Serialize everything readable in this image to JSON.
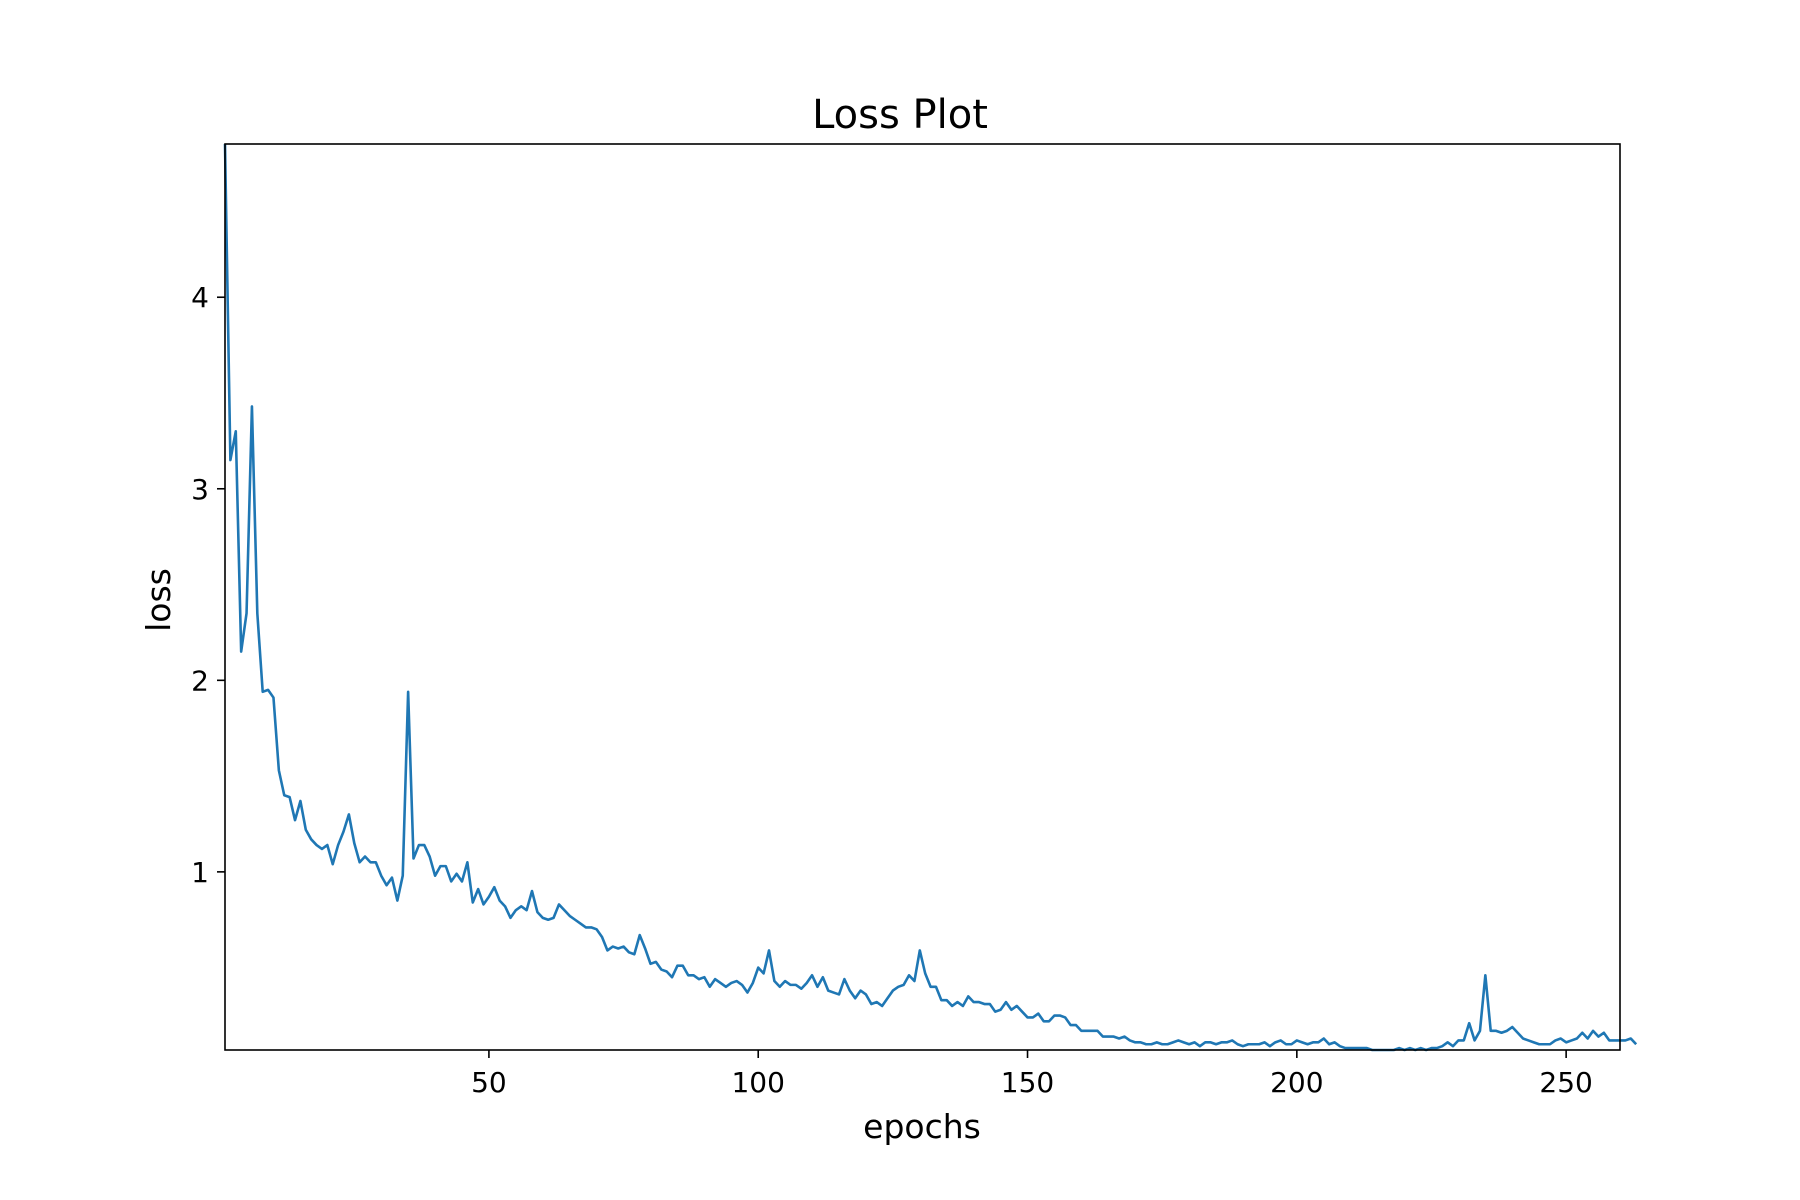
{
  "chart_data": {
    "type": "line",
    "title": "Loss Plot",
    "xlabel": "epochs",
    "ylabel": "loss",
    "xlim": [
      1,
      260
    ],
    "ylim": [
      0.07,
      4.8
    ],
    "x_ticks": [
      50,
      100,
      150,
      200,
      250
    ],
    "x_tick_labels": [
      "50",
      "100",
      "150",
      "200",
      "250"
    ],
    "y_ticks": [
      1,
      2,
      3,
      4
    ],
    "y_tick_labels": [
      "1",
      "2",
      "3",
      "4"
    ],
    "grid": false,
    "legend": "none",
    "line_color": "#1f77b4",
    "series": [
      {
        "x_start": 1,
        "x_step": 1,
        "values": [
          4.8,
          3.15,
          3.3,
          2.15,
          2.35,
          3.43,
          2.35,
          1.94,
          1.95,
          1.91,
          1.53,
          1.4,
          1.39,
          1.27,
          1.37,
          1.22,
          1.17,
          1.14,
          1.12,
          1.14,
          1.04,
          1.14,
          1.21,
          1.3,
          1.15,
          1.05,
          1.08,
          1.05,
          1.05,
          0.98,
          0.93,
          0.97,
          0.85,
          0.98,
          1.94,
          1.07,
          1.14,
          1.14,
          1.08,
          0.98,
          1.03,
          1.03,
          0.95,
          0.99,
          0.95,
          1.05,
          0.84,
          0.91,
          0.83,
          0.87,
          0.92,
          0.85,
          0.82,
          0.76,
          0.8,
          0.82,
          0.8,
          0.9,
          0.79,
          0.76,
          0.75,
          0.76,
          0.83,
          0.8,
          0.77,
          0.75,
          0.73,
          0.71,
          0.71,
          0.7,
          0.66,
          0.59,
          0.61,
          0.6,
          0.61,
          0.58,
          0.57,
          0.67,
          0.6,
          0.52,
          0.53,
          0.49,
          0.48,
          0.45,
          0.51,
          0.51,
          0.46,
          0.46,
          0.44,
          0.45,
          0.4,
          0.44,
          0.42,
          0.4,
          0.42,
          0.43,
          0.41,
          0.37,
          0.42,
          0.5,
          0.47,
          0.59,
          0.43,
          0.4,
          0.43,
          0.41,
          0.41,
          0.39,
          0.42,
          0.46,
          0.4,
          0.45,
          0.38,
          0.37,
          0.36,
          0.44,
          0.38,
          0.34,
          0.38,
          0.36,
          0.31,
          0.32,
          0.3,
          0.34,
          0.38,
          0.4,
          0.41,
          0.46,
          0.43,
          0.59,
          0.47,
          0.4,
          0.4,
          0.33,
          0.33,
          0.3,
          0.32,
          0.3,
          0.35,
          0.32,
          0.32,
          0.31,
          0.31,
          0.27,
          0.28,
          0.32,
          0.28,
          0.3,
          0.27,
          0.24,
          0.24,
          0.26,
          0.22,
          0.22,
          0.25,
          0.25,
          0.24,
          0.2,
          0.2,
          0.17,
          0.17,
          0.17,
          0.17,
          0.14,
          0.14,
          0.14,
          0.13,
          0.14,
          0.12,
          0.11,
          0.11,
          0.1,
          0.1,
          0.11,
          0.1,
          0.1,
          0.11,
          0.12,
          0.11,
          0.1,
          0.11,
          0.09,
          0.11,
          0.11,
          0.1,
          0.11,
          0.11,
          0.12,
          0.1,
          0.09,
          0.1,
          0.1,
          0.1,
          0.11,
          0.09,
          0.11,
          0.12,
          0.1,
          0.1,
          0.12,
          0.11,
          0.1,
          0.11,
          0.11,
          0.13,
          0.1,
          0.11,
          0.09,
          0.08,
          0.08,
          0.08,
          0.08,
          0.08,
          0.07,
          0.07,
          0.07,
          0.07,
          0.07,
          0.08,
          0.07,
          0.08,
          0.07,
          0.08,
          0.07,
          0.08,
          0.08,
          0.09,
          0.11,
          0.09,
          0.12,
          0.12,
          0.21,
          0.12,
          0.17,
          0.46,
          0.17,
          0.17,
          0.16,
          0.17,
          0.19,
          0.16,
          0.13,
          0.12,
          0.11,
          0.1,
          0.1,
          0.1,
          0.12,
          0.13,
          0.11,
          0.12,
          0.13,
          0.16,
          0.13,
          0.17,
          0.14,
          0.16,
          0.12,
          0.12,
          0.12,
          0.12,
          0.13,
          0.1
        ]
      }
    ]
  }
}
